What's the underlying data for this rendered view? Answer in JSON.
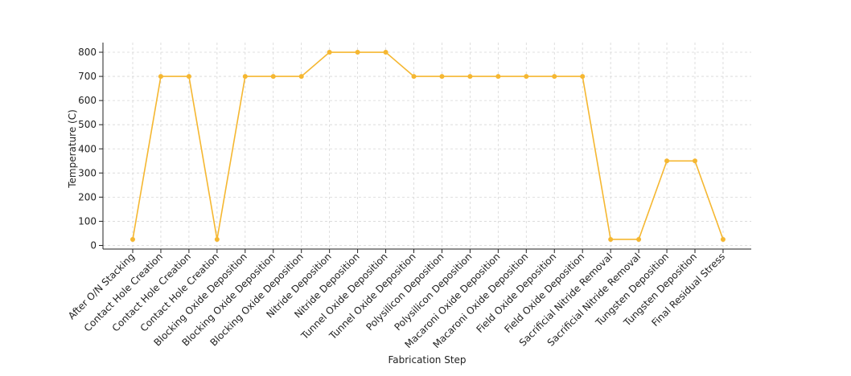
{
  "chart_data": {
    "type": "line",
    "title": "",
    "xlabel": "Fabrication Step",
    "ylabel": "Temperature (C)",
    "ylim": [
      -15,
      840
    ],
    "yticks": [
      0,
      100,
      200,
      300,
      400,
      500,
      600,
      700,
      800
    ],
    "grid": true,
    "line_color": "#f5b731",
    "categories": [
      "After O/N Stacking",
      "Contact Hole Creation",
      "Contact Hole Creation",
      "Contact Hole Creation",
      "Blocking Oxide Deposition",
      "Blocking Oxide Deposition",
      "Blocking Oxide Deposition",
      "Nitride Deposition",
      "Nitride Deposition",
      "Tunnel Oxide Deposition",
      "Tunnel Oxide Deposition",
      "Polysilicon Deposition",
      "Polysilicon Deposition",
      "Macaroni Oxide Deposition",
      "Macaroni Oxide Deposition",
      "Field Oxide Deposition",
      "Field Oxide Deposition",
      "Sacrificial Nitride Removal",
      "Sacrificial Nitride Removal",
      "Tungsten Deposition",
      "Tungsten Deposition",
      "Final Residual Stress"
    ],
    "values": [
      25,
      700,
      700,
      25,
      700,
      700,
      700,
      800,
      800,
      800,
      700,
      700,
      700,
      700,
      700,
      700,
      700,
      25,
      25,
      350,
      350,
      25
    ]
  }
}
